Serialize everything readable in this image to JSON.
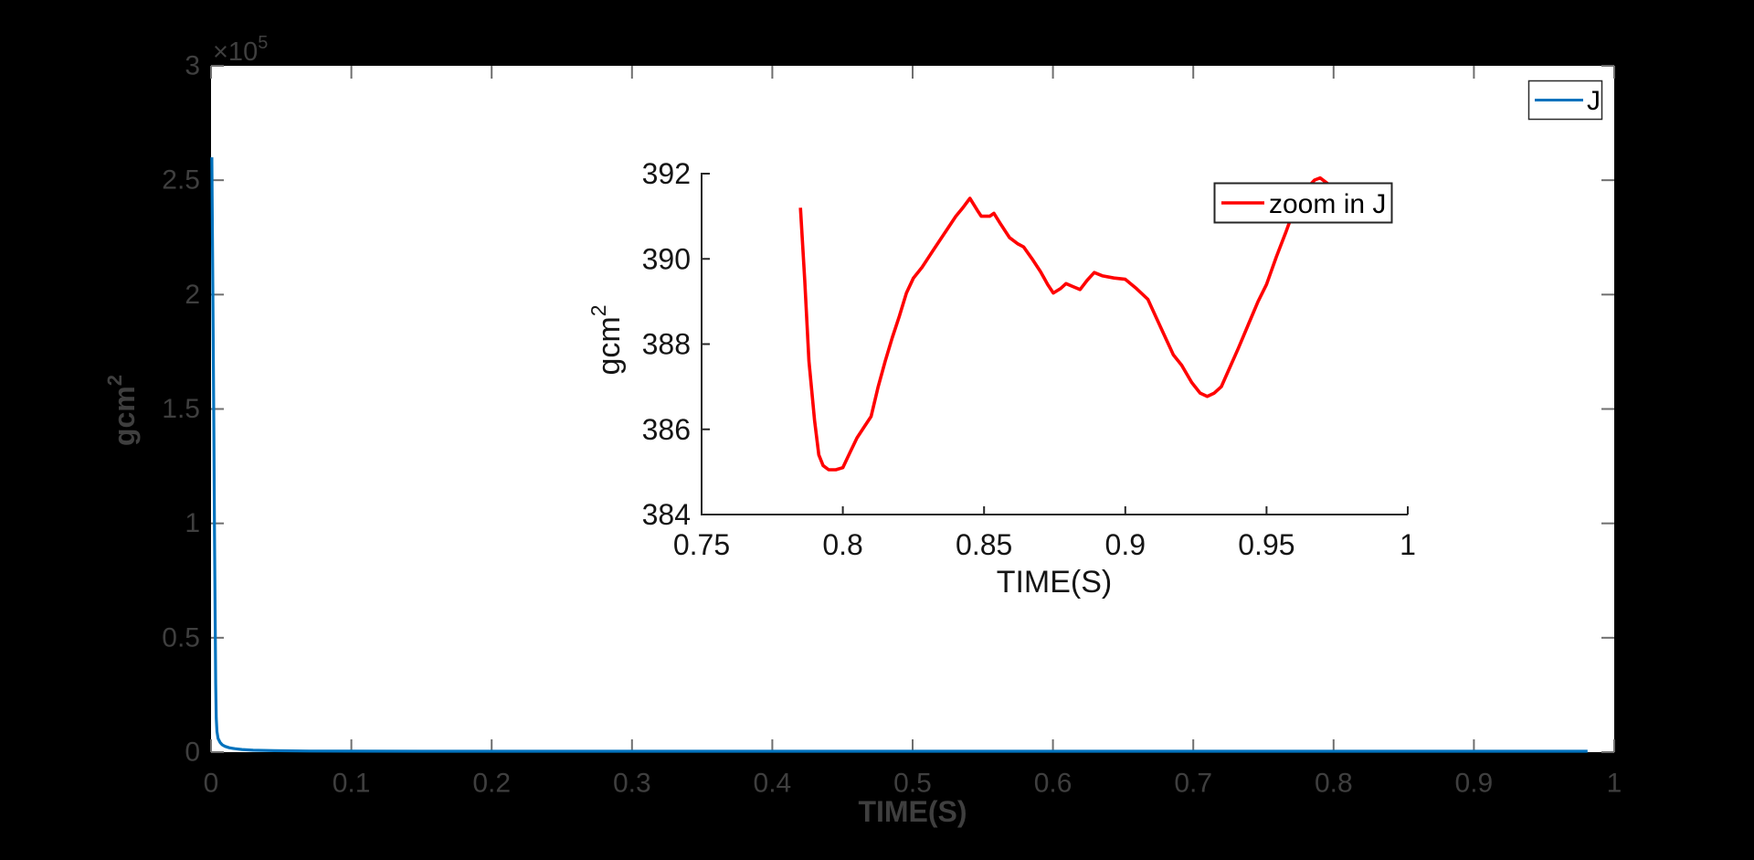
{
  "figure": {
    "background": "#000000",
    "plot_background": "#ffffff"
  },
  "chart_data": [
    {
      "id": "main",
      "type": "line",
      "title": "",
      "xlabel": "TIME(S)",
      "ylabel_base": "gcm",
      "ylabel_sup": "2",
      "exponent_base": "×10",
      "exponent_power": "5",
      "xlim": [
        0,
        1
      ],
      "ylim": [
        0,
        300000
      ],
      "grid": false,
      "box": true,
      "x_tick_values": [
        0,
        0.1,
        0.2,
        0.3,
        0.4,
        0.5,
        0.6,
        0.7,
        0.8,
        0.9,
        1
      ],
      "x_tick_labels": [
        "0",
        "0.1",
        "0.2",
        "0.3",
        "0.4",
        "0.5",
        "0.6",
        "0.7",
        "0.8",
        "0.9",
        "1"
      ],
      "y_tick_values": [
        0,
        50000,
        100000,
        150000,
        200000,
        250000,
        300000
      ],
      "y_tick_labels": [
        "0",
        "0.5",
        "1",
        "1.5",
        "2",
        "2.5",
        "3"
      ],
      "text_color": "#3f3f3f",
      "tick_color": "#6f6f6f",
      "legend": {
        "position": "top-right",
        "label": "J"
      },
      "series": [
        {
          "name": "J",
          "color": "#0072BD",
          "points": [
            [
              0.0006,
              260000
            ],
            [
              0.001,
              228000
            ],
            [
              0.0015,
              185000
            ],
            [
              0.002,
              140000
            ],
            [
              0.0025,
              95000
            ],
            [
              0.003,
              55000
            ],
            [
              0.0033,
              30000
            ],
            [
              0.0037,
              15000
            ],
            [
              0.0042,
              9000
            ],
            [
              0.005,
              6000
            ],
            [
              0.0065,
              4200
            ],
            [
              0.008,
              3200
            ],
            [
              0.01,
              2500
            ],
            [
              0.013,
              1900
            ],
            [
              0.017,
              1500
            ],
            [
              0.022,
              1150
            ],
            [
              0.03,
              850
            ],
            [
              0.045,
              620
            ],
            [
              0.07,
              480
            ],
            [
              0.1,
              430
            ],
            [
              0.15,
              405
            ],
            [
              0.25,
              398
            ],
            [
              0.4,
              394
            ],
            [
              0.6,
              392
            ],
            [
              0.8,
              391
            ],
            [
              0.981,
              390
            ]
          ]
        }
      ]
    },
    {
      "id": "inset",
      "type": "line",
      "title": "",
      "xlabel": "TIME(S)",
      "ylabel_base": "gcm",
      "ylabel_sup": "2",
      "xlim": [
        0.75,
        1
      ],
      "ylim": [
        384,
        392
      ],
      "grid": false,
      "box": false,
      "x_tick_values": [
        0.75,
        0.8,
        0.85,
        0.9,
        0.95,
        1
      ],
      "x_tick_labels": [
        "0.75",
        "0.8",
        "0.85",
        "0.9",
        "0.95",
        "1"
      ],
      "y_tick_values": [
        384,
        386,
        388,
        390,
        392
      ],
      "y_tick_labels": [
        "384",
        "386",
        "388",
        "390",
        "392"
      ],
      "text_color": "#151515",
      "tick_color": "#262626",
      "legend": {
        "position": "top-right",
        "label": "zoom in J"
      },
      "series": [
        {
          "name": "zoom in J",
          "color": "#FF0000",
          "points": [
            [
              0.785,
              391.2
            ],
            [
              0.7865,
              389.5
            ],
            [
              0.788,
              387.6
            ],
            [
              0.79,
              386.2
            ],
            [
              0.7915,
              385.4
            ],
            [
              0.793,
              385.15
            ],
            [
              0.795,
              385.05
            ],
            [
              0.7975,
              385.05
            ],
            [
              0.8,
              385.1
            ],
            [
              0.8025,
              385.45
            ],
            [
              0.805,
              385.8
            ],
            [
              0.8075,
              386.05
            ],
            [
              0.81,
              386.3
            ],
            [
              0.8125,
              387.0
            ],
            [
              0.815,
              387.6
            ],
            [
              0.8175,
              388.15
            ],
            [
              0.82,
              388.65
            ],
            [
              0.8225,
              389.2
            ],
            [
              0.825,
              389.55
            ],
            [
              0.828,
              389.8
            ],
            [
              0.832,
              390.2
            ],
            [
              0.836,
              390.6
            ],
            [
              0.84,
              391.0
            ],
            [
              0.8425,
              391.2
            ],
            [
              0.845,
              391.42
            ],
            [
              0.8475,
              391.15
            ],
            [
              0.849,
              391.0
            ],
            [
              0.852,
              391.0
            ],
            [
              0.8535,
              391.07
            ],
            [
              0.856,
              390.8
            ],
            [
              0.859,
              390.5
            ],
            [
              0.862,
              390.35
            ],
            [
              0.864,
              390.28
            ],
            [
              0.867,
              390.0
            ],
            [
              0.87,
              389.7
            ],
            [
              0.8725,
              389.4
            ],
            [
              0.8745,
              389.2
            ],
            [
              0.877,
              389.3
            ],
            [
              0.879,
              389.42
            ],
            [
              0.8815,
              389.35
            ],
            [
              0.884,
              389.28
            ],
            [
              0.8865,
              389.5
            ],
            [
              0.889,
              389.68
            ],
            [
              0.892,
              389.6
            ],
            [
              0.896,
              389.55
            ],
            [
              0.9,
              389.52
            ],
            [
              0.904,
              389.3
            ],
            [
              0.908,
              389.05
            ],
            [
              0.9125,
              388.4
            ],
            [
              0.917,
              387.75
            ],
            [
              0.92,
              387.5
            ],
            [
              0.9235,
              387.1
            ],
            [
              0.9265,
              386.85
            ],
            [
              0.929,
              386.77
            ],
            [
              0.9315,
              386.85
            ],
            [
              0.934,
              387.0
            ],
            [
              0.937,
              387.45
            ],
            [
              0.94,
              387.9
            ],
            [
              0.9435,
              388.45
            ],
            [
              0.947,
              389.0
            ],
            [
              0.95,
              389.4
            ],
            [
              0.9535,
              390.05
            ],
            [
              0.957,
              390.65
            ],
            [
              0.96,
              391.2
            ],
            [
              0.9635,
              391.6
            ],
            [
              0.967,
              391.85
            ],
            [
              0.969,
              391.9
            ],
            [
              0.972,
              391.75
            ],
            [
              0.975,
              391.45
            ]
          ]
        }
      ]
    }
  ]
}
